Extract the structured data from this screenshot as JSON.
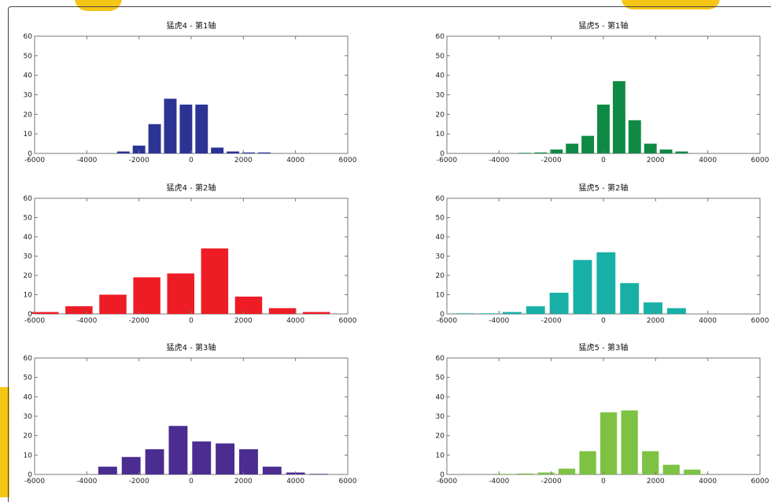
{
  "chart_data": [
    {
      "type": "bar",
      "title": "猛虎4 - 第1轴",
      "color": "#2b3494",
      "xlim": [
        -6000,
        6000
      ],
      "ylim": [
        0,
        60
      ],
      "xticks": [
        -6000,
        -4000,
        -2000,
        0,
        2000,
        4000,
        6000
      ],
      "yticks": [
        0,
        10,
        20,
        30,
        40,
        50,
        60
      ],
      "grid": false,
      "x": [
        -2600,
        -2000,
        -1400,
        -800,
        -200,
        400,
        1000,
        1600,
        2200,
        2800
      ],
      "values": [
        1,
        4,
        15,
        28,
        25,
        25,
        3,
        1,
        0.5,
        0.5
      ]
    },
    {
      "type": "bar",
      "title": "猛虎5 - 第1轴",
      "color": "#0f8a44",
      "xlim": [
        -6000,
        6000
      ],
      "ylim": [
        0,
        60
      ],
      "xticks": [
        -6000,
        -4000,
        -2000,
        0,
        2000,
        4000,
        6000
      ],
      "yticks": [
        0,
        10,
        20,
        30,
        40,
        50,
        60
      ],
      "grid": false,
      "x": [
        -3000,
        -2400,
        -1800,
        -1200,
        -600,
        0,
        600,
        1200,
        1800,
        2400,
        3000
      ],
      "values": [
        0.3,
        0.5,
        2,
        5,
        9,
        25,
        37,
        17,
        5,
        2,
        1
      ]
    },
    {
      "type": "bar",
      "title": "猛虎4 - 第2轴",
      "color": "#ee1c25",
      "xlim": [
        -6000,
        6000
      ],
      "ylim": [
        0,
        60
      ],
      "xticks": [
        -6000,
        -4000,
        -2000,
        0,
        2000,
        4000,
        6000
      ],
      "yticks": [
        0,
        10,
        20,
        30,
        40,
        50,
        60
      ],
      "grid": false,
      "x": [
        -5600,
        -4300,
        -3000,
        -1700,
        -400,
        900,
        2200,
        3500,
        4800
      ],
      "values": [
        1,
        4,
        10,
        19,
        21,
        34,
        9,
        3,
        1
      ]
    },
    {
      "type": "bar",
      "title": "猛虎5 - 第2轴",
      "color": "#18b0a6",
      "xlim": [
        -6000,
        6000
      ],
      "ylim": [
        0,
        60
      ],
      "xticks": [
        -6000,
        -4000,
        -2000,
        0,
        2000,
        4000,
        6000
      ],
      "yticks": [
        0,
        10,
        20,
        30,
        40,
        50,
        60
      ],
      "grid": false,
      "x": [
        -5300,
        -4400,
        -3500,
        -2600,
        -1700,
        -800,
        100,
        1000,
        1900,
        2800
      ],
      "values": [
        0.3,
        0.3,
        1,
        4,
        11,
        28,
        32,
        16,
        6,
        3
      ]
    },
    {
      "type": "bar",
      "title": "猛虎4 - 第3轴",
      "color": "#4b2c91",
      "xlim": [
        -6000,
        6000
      ],
      "ylim": [
        0,
        60
      ],
      "xticks": [
        -6000,
        -4000,
        -2000,
        0,
        2000,
        4000,
        6000
      ],
      "yticks": [
        0,
        10,
        20,
        30,
        40,
        50,
        60
      ],
      "grid": false,
      "x": [
        -3200,
        -2300,
        -1400,
        -500,
        400,
        1300,
        2200,
        3100,
        4000,
        4900
      ],
      "values": [
        4,
        9,
        13,
        25,
        17,
        16,
        13,
        4,
        1,
        0.3
      ]
    },
    {
      "type": "bar",
      "title": "猛虎5 - 第3轴",
      "color": "#7dc243",
      "xlim": [
        -6000,
        6000
      ],
      "ylim": [
        0,
        60
      ],
      "xticks": [
        -6000,
        -4000,
        -2000,
        0,
        2000,
        4000,
        6000
      ],
      "yticks": [
        0,
        10,
        20,
        30,
        40,
        50,
        60
      ],
      "grid": false,
      "x": [
        -3800,
        -3000,
        -2200,
        -1400,
        -600,
        200,
        1000,
        1800,
        2600,
        3400
      ],
      "values": [
        0.3,
        0.5,
        1,
        3,
        12,
        32,
        33,
        12,
        5,
        2.5
      ]
    }
  ]
}
